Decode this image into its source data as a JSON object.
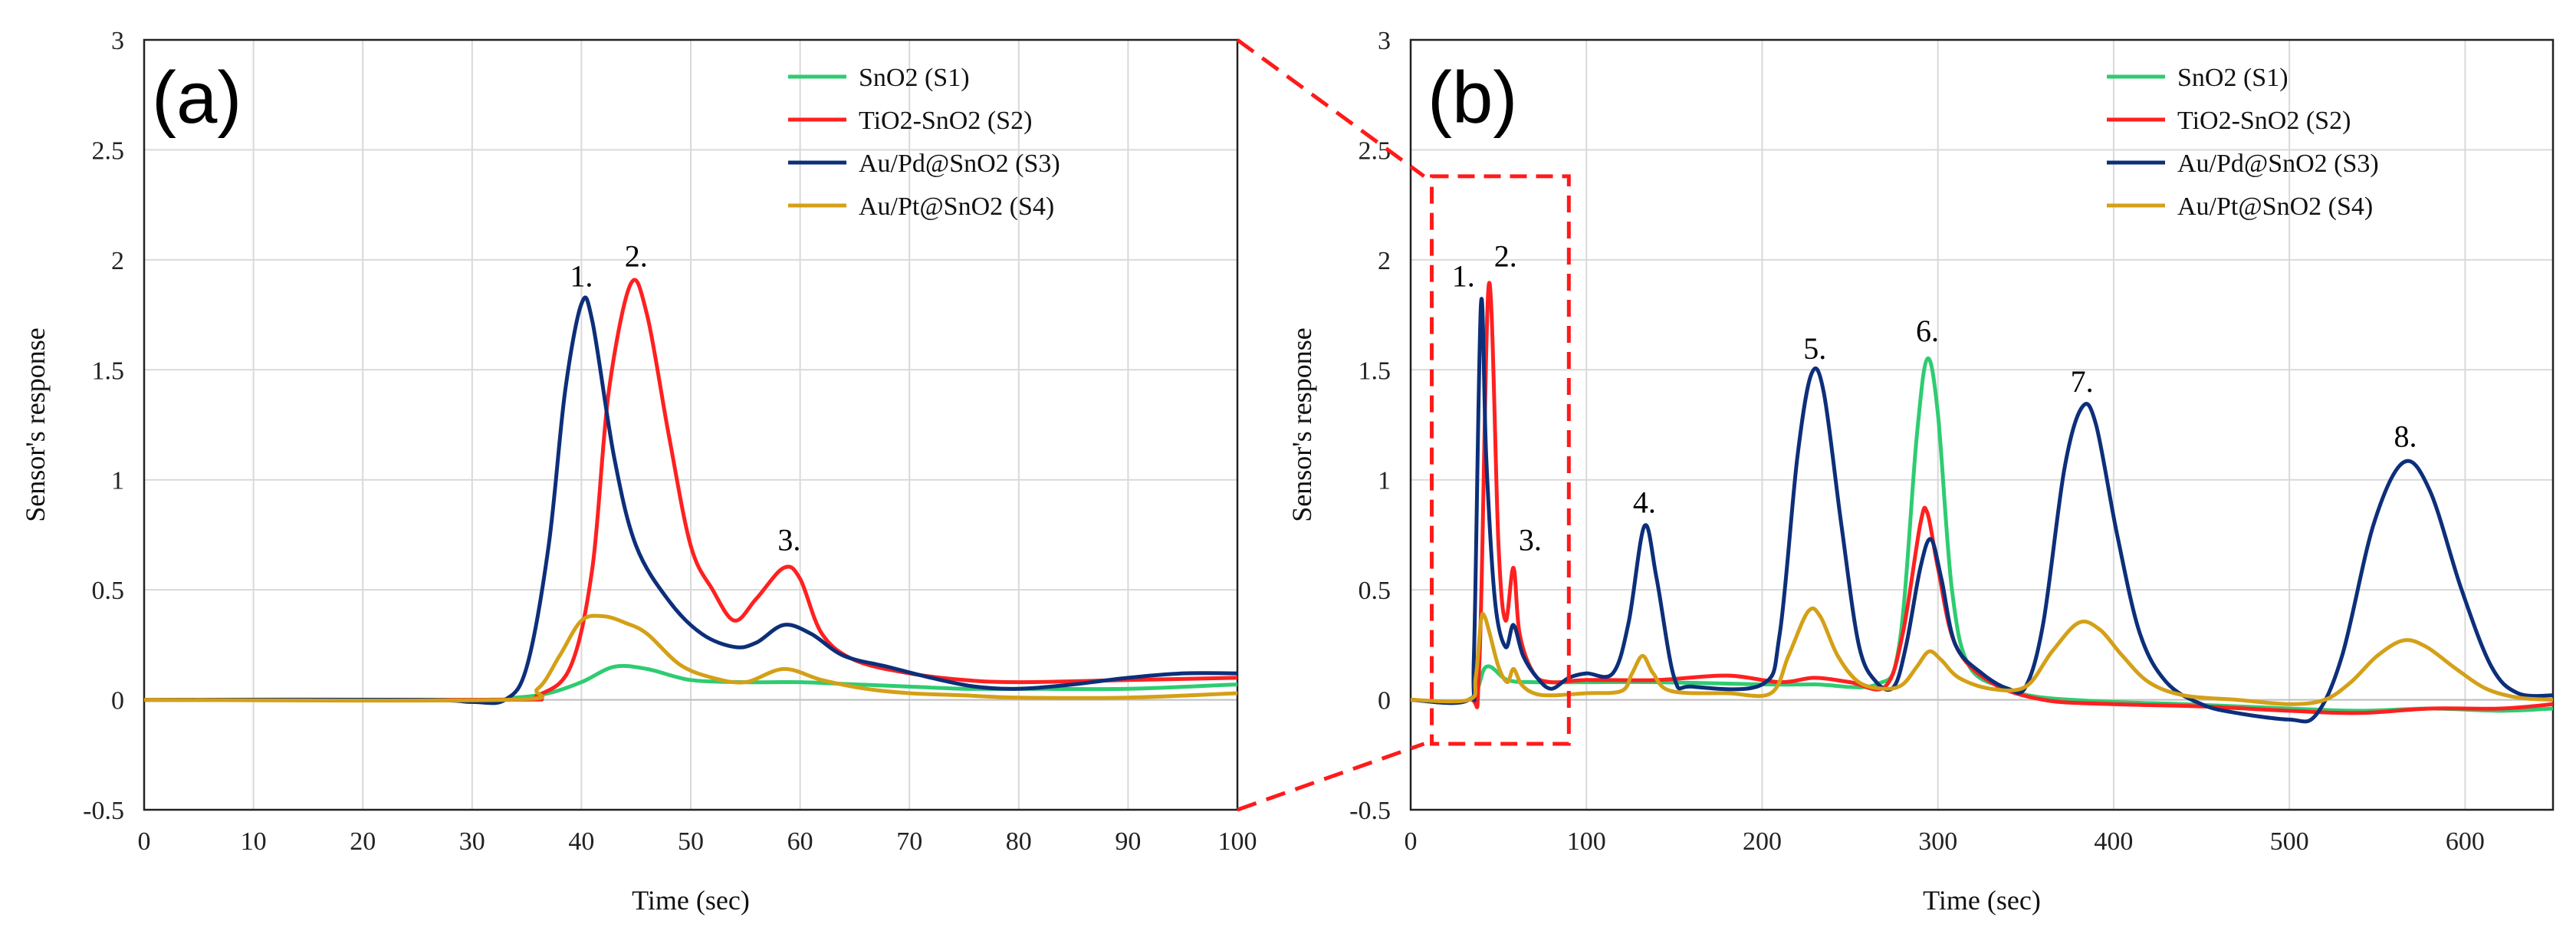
{
  "chart_data": [
    {
      "type": "line",
      "panel": "(a)",
      "xlabel": "Time (sec)",
      "ylabel": "Sensor's response",
      "xlim": [
        0,
        100
      ],
      "ylim": [
        -0.5,
        3
      ],
      "xticks": [
        "0",
        "10",
        "20",
        "30",
        "40",
        "50",
        "60",
        "70",
        "80",
        "90",
        "100"
      ],
      "yticks": [
        "-0.5",
        "0",
        "0.5",
        "1",
        "1.5",
        "2",
        "2.5",
        "3"
      ],
      "xtick_values": [
        0,
        10,
        20,
        30,
        40,
        50,
        60,
        70,
        80,
        90,
        100
      ],
      "ytick_values": [
        -0.5,
        0,
        0.5,
        1,
        1.5,
        2,
        2.5,
        3
      ],
      "grid": true,
      "legend_position": "top-right",
      "series": [
        {
          "name": "SnO2 (S1)",
          "color": "#2ecc71",
          "points": [
            [
              0,
              0
            ],
            [
              30,
              0
            ],
            [
              34,
              0.01
            ],
            [
              37,
              0.03
            ],
            [
              40,
              0.08
            ],
            [
              43,
              0.15
            ],
            [
              46,
              0.14
            ],
            [
              50,
              0.09
            ],
            [
              55,
              0.08
            ],
            [
              60,
              0.08
            ],
            [
              65,
              0.07
            ],
            [
              70,
              0.06
            ],
            [
              75,
              0.05
            ],
            [
              80,
              0.05
            ],
            [
              90,
              0.05
            ],
            [
              100,
              0.07
            ]
          ]
        },
        {
          "name": "TiO2-SnO2 (S2)",
          "color": "#ff2020",
          "points": [
            [
              0,
              0
            ],
            [
              33,
              0
            ],
            [
              36,
              0.02
            ],
            [
              39,
              0.15
            ],
            [
              41,
              0.6
            ],
            [
              42.5,
              1.4
            ],
            [
              44.5,
              1.89
            ],
            [
              46,
              1.75
            ],
            [
              48,
              1.2
            ],
            [
              50,
              0.7
            ],
            [
              52,
              0.5
            ],
            [
              54,
              0.36
            ],
            [
              56,
              0.46
            ],
            [
              58.5,
              0.6
            ],
            [
              60,
              0.55
            ],
            [
              62,
              0.3
            ],
            [
              65,
              0.18
            ],
            [
              70,
              0.12
            ],
            [
              75,
              0.09
            ],
            [
              80,
              0.08
            ],
            [
              90,
              0.09
            ],
            [
              100,
              0.1
            ]
          ]
        },
        {
          "name": "Au/Pd@SnO2 (S3)",
          "color": "#0d2f7a",
          "points": [
            [
              0,
              0
            ],
            [
              25,
              0
            ],
            [
              30,
              -0.01
            ],
            [
              33,
              0
            ],
            [
              35,
              0.15
            ],
            [
              37,
              0.7
            ],
            [
              38.5,
              1.4
            ],
            [
              40,
              1.8
            ],
            [
              41,
              1.72
            ],
            [
              43,
              1.1
            ],
            [
              45,
              0.7
            ],
            [
              48,
              0.45
            ],
            [
              51,
              0.3
            ],
            [
              54,
              0.24
            ],
            [
              56,
              0.26
            ],
            [
              58.5,
              0.34
            ],
            [
              61,
              0.3
            ],
            [
              64,
              0.2
            ],
            [
              68,
              0.15
            ],
            [
              72,
              0.1
            ],
            [
              76,
              0.06
            ],
            [
              80,
              0.05
            ],
            [
              85,
              0.07
            ],
            [
              90,
              0.1
            ],
            [
              95,
              0.12
            ],
            [
              100,
              0.12
            ]
          ]
        },
        {
          "name": "Au/Pt@SnO2 (S4)",
          "color": "#d4a017",
          "points": [
            [
              0,
              0
            ],
            [
              33,
              0
            ],
            [
              36,
              0.05
            ],
            [
              38,
              0.2
            ],
            [
              40,
              0.36
            ],
            [
              42,
              0.38
            ],
            [
              44,
              0.35
            ],
            [
              46,
              0.3
            ],
            [
              49,
              0.16
            ],
            [
              52,
              0.1
            ],
            [
              55,
              0.08
            ],
            [
              58.5,
              0.14
            ],
            [
              62,
              0.09
            ],
            [
              66,
              0.05
            ],
            [
              70,
              0.03
            ],
            [
              75,
              0.02
            ],
            [
              80,
              0.01
            ],
            [
              90,
              0.01
            ],
            [
              100,
              0.03
            ]
          ]
        }
      ],
      "annotations": [
        {
          "text": "1.",
          "x": 40,
          "y": 1.88
        },
        {
          "text": "2.",
          "x": 45,
          "y": 1.97
        },
        {
          "text": "3.",
          "x": 59,
          "y": 0.68
        }
      ]
    },
    {
      "type": "line",
      "panel": "(b)",
      "xlabel": "Time (sec)",
      "ylabel": "Sensor's response",
      "xlim": [
        0,
        650
      ],
      "ylim": [
        -0.5,
        3
      ],
      "xticks": [
        "0",
        "100",
        "200",
        "300",
        "400",
        "500",
        "600"
      ],
      "yticks": [
        "-0.5",
        "0",
        "0.5",
        "1",
        "1.5",
        "2",
        "2.5",
        "3"
      ],
      "xtick_values": [
        0,
        100,
        200,
        300,
        400,
        500,
        600
      ],
      "ytick_values": [
        -0.5,
        0,
        0.5,
        1,
        1.5,
        2,
        2.5,
        3
      ],
      "grid": true,
      "legend_position": "top-right",
      "series": [
        {
          "name": "SnO2 (S1)",
          "color": "#2ecc71",
          "points": [
            [
              0,
              0
            ],
            [
              33,
              0
            ],
            [
              43,
              0.15
            ],
            [
              55,
              0.09
            ],
            [
              70,
              0.08
            ],
            [
              100,
              0.08
            ],
            [
              140,
              0.08
            ],
            [
              200,
              0.07
            ],
            [
              230,
              0.07
            ],
            [
              265,
              0.07
            ],
            [
              278,
              0.25
            ],
            [
              288,
              1.2
            ],
            [
              294,
              1.55
            ],
            [
              300,
              1.3
            ],
            [
              308,
              0.5
            ],
            [
              318,
              0.15
            ],
            [
              340,
              0.05
            ],
            [
              360,
              0.01
            ],
            [
              400,
              -0.01
            ],
            [
              440,
              -0.02
            ],
            [
              500,
              -0.04
            ],
            [
              540,
              -0.05
            ],
            [
              580,
              -0.04
            ],
            [
              620,
              -0.05
            ],
            [
              650,
              -0.04
            ]
          ]
        },
        {
          "name": "TiO2-SnO2 (S2)",
          "color": "#ff2020",
          "points": [
            [
              0,
              0
            ],
            [
              33,
              0
            ],
            [
              39,
              0.15
            ],
            [
              44.5,
              1.89
            ],
            [
              50,
              0.7
            ],
            [
              54,
              0.36
            ],
            [
              58.5,
              0.6
            ],
            [
              62,
              0.3
            ],
            [
              70,
              0.12
            ],
            [
              80,
              0.08
            ],
            [
              100,
              0.09
            ],
            [
              140,
              0.09
            ],
            [
              180,
              0.11
            ],
            [
              210,
              0.08
            ],
            [
              230,
              0.1
            ],
            [
              250,
              0.08
            ],
            [
              270,
              0.06
            ],
            [
              280,
              0.3
            ],
            [
              290,
              0.8
            ],
            [
              294,
              0.85
            ],
            [
              300,
              0.6
            ],
            [
              310,
              0.25
            ],
            [
              330,
              0.08
            ],
            [
              360,
              0.0
            ],
            [
              400,
              -0.02
            ],
            [
              450,
              -0.03
            ],
            [
              500,
              -0.05
            ],
            [
              540,
              -0.06
            ],
            [
              580,
              -0.04
            ],
            [
              620,
              -0.04
            ],
            [
              650,
              -0.02
            ]
          ]
        },
        {
          "name": "Au/Pd@SnO2 (S3)",
          "color": "#0d2f7a",
          "points": [
            [
              0,
              0
            ],
            [
              33,
              0
            ],
            [
              36,
              0.2
            ],
            [
              40,
              1.8
            ],
            [
              43,
              1.1
            ],
            [
              48,
              0.45
            ],
            [
              54,
              0.24
            ],
            [
              58.5,
              0.34
            ],
            [
              64,
              0.2
            ],
            [
              72,
              0.1
            ],
            [
              80,
              0.05
            ],
            [
              90,
              0.1
            ],
            [
              100,
              0.12
            ],
            [
              115,
              0.12
            ],
            [
              124,
              0.35
            ],
            [
              133,
              0.79
            ],
            [
              140,
              0.55
            ],
            [
              150,
              0.1
            ],
            [
              160,
              0.06
            ],
            [
              200,
              0.07
            ],
            [
              210,
              0.3
            ],
            [
              220,
              1.1
            ],
            [
              228,
              1.48
            ],
            [
              235,
              1.4
            ],
            [
              245,
              0.8
            ],
            [
              255,
              0.25
            ],
            [
              265,
              0.08
            ],
            [
              275,
              0.06
            ],
            [
              282,
              0.25
            ],
            [
              290,
              0.6
            ],
            [
              296,
              0.73
            ],
            [
              302,
              0.55
            ],
            [
              310,
              0.25
            ],
            [
              325,
              0.12
            ],
            [
              340,
              0.05
            ],
            [
              350,
              0.06
            ],
            [
              360,
              0.35
            ],
            [
              372,
              1.05
            ],
            [
              382,
              1.33
            ],
            [
              390,
              1.25
            ],
            [
              402,
              0.75
            ],
            [
              415,
              0.3
            ],
            [
              430,
              0.08
            ],
            [
              450,
              -0.02
            ],
            [
              470,
              -0.06
            ],
            [
              500,
              -0.09
            ],
            [
              515,
              -0.07
            ],
            [
              530,
              0.2
            ],
            [
              548,
              0.8
            ],
            [
              565,
              1.08
            ],
            [
              580,
              0.95
            ],
            [
              598,
              0.5
            ],
            [
              615,
              0.15
            ],
            [
              630,
              0.03
            ],
            [
              650,
              0.02
            ]
          ]
        },
        {
          "name": "Au/Pt@SnO2 (S4)",
          "color": "#d4a017",
          "points": [
            [
              0,
              0
            ],
            [
              33,
              0
            ],
            [
              37,
              0.1
            ],
            [
              40,
              0.36
            ],
            [
              42,
              0.38
            ],
            [
              45,
              0.3
            ],
            [
              50,
              0.15
            ],
            [
              55,
              0.08
            ],
            [
              58.5,
              0.14
            ],
            [
              63,
              0.07
            ],
            [
              70,
              0.03
            ],
            [
              80,
              0.02
            ],
            [
              100,
              0.03
            ],
            [
              120,
              0.04
            ],
            [
              126,
              0.12
            ],
            [
              132,
              0.2
            ],
            [
              138,
              0.12
            ],
            [
              148,
              0.04
            ],
            [
              180,
              0.03
            ],
            [
              205,
              0.03
            ],
            [
              215,
              0.2
            ],
            [
              226,
              0.4
            ],
            [
              233,
              0.38
            ],
            [
              243,
              0.2
            ],
            [
              255,
              0.08
            ],
            [
              270,
              0.05
            ],
            [
              280,
              0.07
            ],
            [
              288,
              0.15
            ],
            [
              295,
              0.22
            ],
            [
              302,
              0.18
            ],
            [
              312,
              0.1
            ],
            [
              330,
              0.05
            ],
            [
              350,
              0.06
            ],
            [
              365,
              0.22
            ],
            [
              380,
              0.35
            ],
            [
              392,
              0.32
            ],
            [
              405,
              0.2
            ],
            [
              420,
              0.08
            ],
            [
              440,
              0.02
            ],
            [
              470,
              0.0
            ],
            [
              500,
              -0.02
            ],
            [
              520,
              0.0
            ],
            [
              535,
              0.08
            ],
            [
              550,
              0.2
            ],
            [
              565,
              0.27
            ],
            [
              578,
              0.24
            ],
            [
              595,
              0.14
            ],
            [
              612,
              0.05
            ],
            [
              630,
              0.01
            ],
            [
              650,
              0.0
            ]
          ]
        }
      ],
      "annotations": [
        {
          "text": "1.",
          "x": 30,
          "y": 1.88
        },
        {
          "text": "2.",
          "x": 54,
          "y": 1.97
        },
        {
          "text": "3.",
          "x": 68,
          "y": 0.68
        },
        {
          "text": "4.",
          "x": 133,
          "y": 0.85
        },
        {
          "text": "5.",
          "x": 230,
          "y": 1.55
        },
        {
          "text": "6.",
          "x": 294,
          "y": 1.63
        },
        {
          "text": "7.",
          "x": 382,
          "y": 1.4
        },
        {
          "text": "8.",
          "x": 566,
          "y": 1.15
        }
      ],
      "zoom_box": {
        "x": [
          12,
          90
        ],
        "y": [
          -0.2,
          2.38
        ]
      }
    }
  ]
}
